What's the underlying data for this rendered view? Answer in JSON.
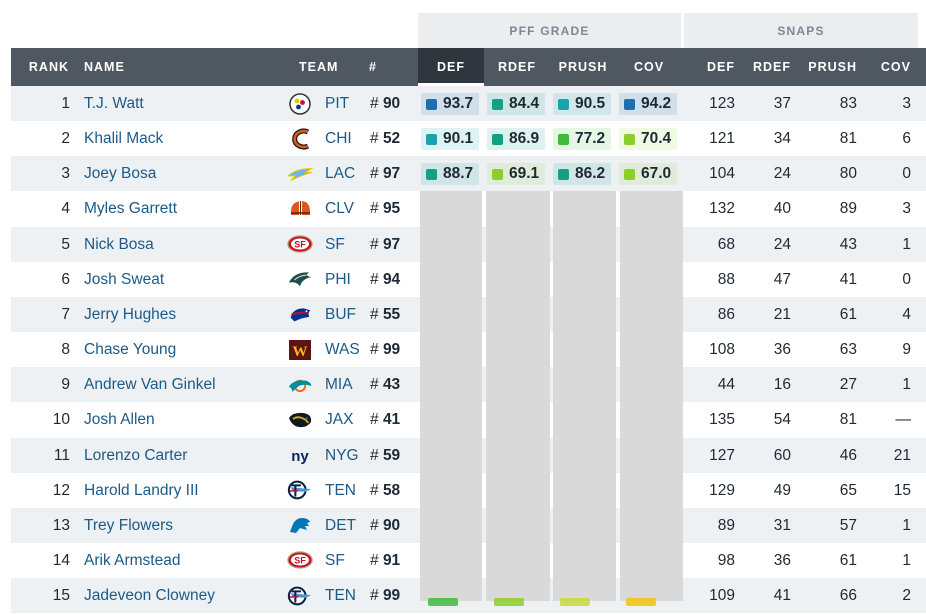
{
  "groups": {
    "pff_grade": "PFF GRADE",
    "snaps": "SNAPS"
  },
  "columns": {
    "rank": "RANK",
    "name": "NAME",
    "team": "TEAM",
    "number": "#",
    "def": "DEF",
    "rdef": "RDEF",
    "prush": "PRUSH",
    "cov": "COV",
    "snap_def": "DEF",
    "snap_rdef": "RDEF",
    "snap_prush": "PRUSH",
    "snap_cov": "COV"
  },
  "selected_sort_column": "DEF",
  "grade_colors": {
    "elite": "#1f6fb0",
    "high": "#1aa3ad",
    "good": "#13a085",
    "above_avg": "#3dbb3d",
    "average": "#8ccf2a",
    "below": "#f4c20d"
  },
  "players": [
    {
      "rank": "1",
      "name": "T.J. Watt",
      "team_logo": "steelers-logo",
      "team": "PIT",
      "hash": "#",
      "number": "90",
      "grades": [
        {
          "value": "93.7",
          "color": "#1f6fb0"
        },
        {
          "value": "84.4",
          "color": "#13a085"
        },
        {
          "value": "90.5",
          "color": "#1aa3ad"
        },
        {
          "value": "94.2",
          "color": "#1f6fb0"
        }
      ],
      "snaps": {
        "def": "123",
        "rdef": "37",
        "prush": "83",
        "cov": "3"
      }
    },
    {
      "rank": "2",
      "name": "Khalil Mack",
      "team_logo": "bears-logo",
      "team": "CHI",
      "hash": "#",
      "number": "52",
      "grades": [
        {
          "value": "90.1",
          "color": "#1aa3ad"
        },
        {
          "value": "86.9",
          "color": "#13a085"
        },
        {
          "value": "77.2",
          "color": "#3dbb3d"
        },
        {
          "value": "70.4",
          "color": "#8ccf2a"
        }
      ],
      "snaps": {
        "def": "121",
        "rdef": "34",
        "prush": "81",
        "cov": "6"
      }
    },
    {
      "rank": "3",
      "name": "Joey Bosa",
      "team_logo": "chargers-logo",
      "team": "LAC",
      "hash": "#",
      "number": "97",
      "grades": [
        {
          "value": "88.7",
          "color": "#13a085"
        },
        {
          "value": "69.1",
          "color": "#8ccf2a"
        },
        {
          "value": "86.2",
          "color": "#13a085"
        },
        {
          "value": "67.0",
          "color": "#8ccf2a"
        }
      ],
      "snaps": {
        "def": "104",
        "rdef": "24",
        "prush": "80",
        "cov": "0"
      }
    },
    {
      "rank": "4",
      "name": "Myles Garrett",
      "team_logo": "browns-logo",
      "team": "CLV",
      "hash": "#",
      "number": "95",
      "snaps": {
        "def": "132",
        "rdef": "40",
        "prush": "89",
        "cov": "3"
      }
    },
    {
      "rank": "5",
      "name": "Nick Bosa",
      "team_logo": "49ers-logo",
      "team": "SF",
      "hash": "#",
      "number": "97",
      "snaps": {
        "def": "68",
        "rdef": "24",
        "prush": "43",
        "cov": "1"
      }
    },
    {
      "rank": "6",
      "name": "Josh Sweat",
      "team_logo": "eagles-logo",
      "team": "PHI",
      "hash": "#",
      "number": "94",
      "snaps": {
        "def": "88",
        "rdef": "47",
        "prush": "41",
        "cov": "0"
      }
    },
    {
      "rank": "7",
      "name": "Jerry Hughes",
      "team_logo": "bills-logo",
      "team": "BUF",
      "hash": "#",
      "number": "55",
      "snaps": {
        "def": "86",
        "rdef": "21",
        "prush": "61",
        "cov": "4"
      }
    },
    {
      "rank": "8",
      "name": "Chase Young",
      "team_logo": "washington-logo",
      "team": "WAS",
      "hash": "#",
      "number": "99",
      "snaps": {
        "def": "108",
        "rdef": "36",
        "prush": "63",
        "cov": "9"
      }
    },
    {
      "rank": "9",
      "name": "Andrew Van Ginkel",
      "team_logo": "dolphins-logo",
      "team": "MIA",
      "hash": "#",
      "number": "43",
      "snaps": {
        "def": "44",
        "rdef": "16",
        "prush": "27",
        "cov": "1"
      }
    },
    {
      "rank": "10",
      "name": "Josh Allen",
      "team_logo": "jaguars-logo",
      "team": "JAX",
      "hash": "#",
      "number": "41",
      "snaps": {
        "def": "135",
        "rdef": "54",
        "prush": "81",
        "cov": "—"
      }
    },
    {
      "rank": "11",
      "name": "Lorenzo Carter",
      "team_logo": "giants-logo",
      "team": "NYG",
      "hash": "#",
      "number": "59",
      "snaps": {
        "def": "127",
        "rdef": "60",
        "prush": "46",
        "cov": "21"
      }
    },
    {
      "rank": "12",
      "name": "Harold Landry III",
      "team_logo": "titans-logo",
      "team": "TEN",
      "hash": "#",
      "number": "58",
      "snaps": {
        "def": "129",
        "rdef": "49",
        "prush": "65",
        "cov": "15"
      }
    },
    {
      "rank": "13",
      "name": "Trey Flowers",
      "team_logo": "lions-logo",
      "team": "DET",
      "hash": "#",
      "number": "90",
      "snaps": {
        "def": "89",
        "rdef": "31",
        "prush": "57",
        "cov": "1"
      }
    },
    {
      "rank": "14",
      "name": "Arik Armstead",
      "team_logo": "49ers-logo",
      "team": "SF",
      "hash": "#",
      "number": "91",
      "snaps": {
        "def": "98",
        "rdef": "36",
        "prush": "61",
        "cov": "1"
      }
    },
    {
      "rank": "15",
      "name": "Jadeveon Clowney",
      "team_logo": "titans-logo",
      "team": "TEN",
      "hash": "#",
      "number": "99",
      "snaps": {
        "def": "109",
        "rdef": "41",
        "prush": "66",
        "cov": "2"
      }
    }
  ]
}
